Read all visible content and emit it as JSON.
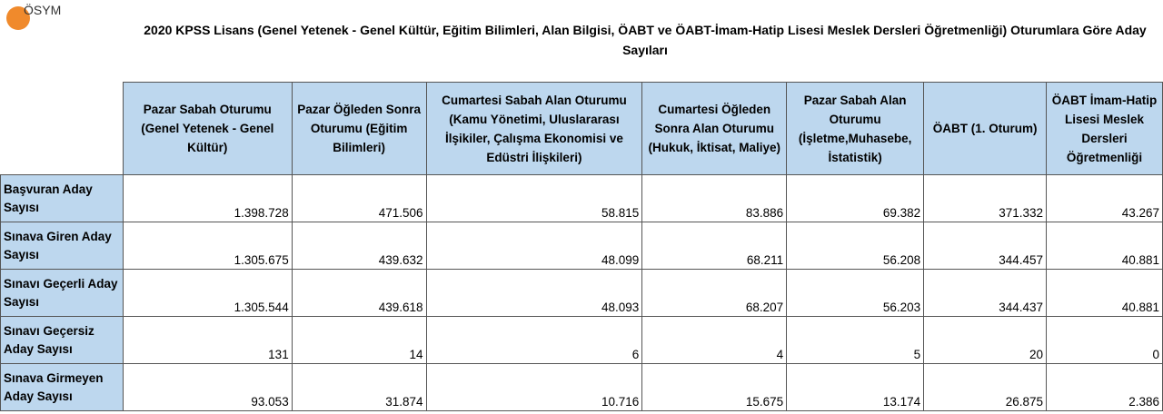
{
  "logo": "ÖSYM",
  "title": "2020 KPSS Lisans (Genel Yetenek - Genel Kültür, Eğitim Bilimleri, Alan Bilgisi, ÖABT ve ÖABT-İmam-Hatip Lisesi Meslek Dersleri Öğretmenliği) Oturumlara Göre Aday Sayıları",
  "columns": [
    "Pazar Sabah Oturumu (Genel Yetenek - Genel Kültür)",
    "Pazar Öğleden Sonra Oturumu (Eğitim Bilimleri)",
    "Cumartesi Sabah Alan Oturumu (Kamu Yönetimi, Uluslararası İlşikiler, Çalışma Ekonomisi ve Edüstri İlişkileri)",
    "Cumartesi Öğleden Sonra Alan Oturumu (Hukuk, İktisat, Maliye)",
    "Pazar Sabah Alan Oturumu (İşletme,Muhasebe, İstatistik)",
    "ÖABT (1. Oturum)",
    "ÖABT İmam-Hatip Lisesi Meslek Dersleri Öğretmenliği"
  ],
  "rows": [
    {
      "label": "Başvuran Aday Sayısı",
      "values": [
        "1.398.728",
        "471.506",
        "58.815",
        "83.886",
        "69.382",
        "371.332",
        "43.267"
      ]
    },
    {
      "label": "Sınava Giren Aday Sayısı",
      "values": [
        "1.305.675",
        "439.632",
        "48.099",
        "68.211",
        "56.208",
        "344.457",
        "40.881"
      ]
    },
    {
      "label": "Sınavı Geçerli Aday Sayısı",
      "values": [
        "1.305.544",
        "439.618",
        "48.093",
        "68.207",
        "56.203",
        "344.437",
        "40.881"
      ]
    },
    {
      "label": "Sınavı Geçersiz Aday Sayısı",
      "values": [
        "131",
        "14",
        "6",
        "4",
        "5",
        "20",
        "0"
      ]
    },
    {
      "label": "Sınava Girmeyen Aday Sayısı",
      "values": [
        "93.053",
        "31.874",
        "10.716",
        "15.675",
        "13.174",
        "26.875",
        "2.386"
      ]
    }
  ]
}
